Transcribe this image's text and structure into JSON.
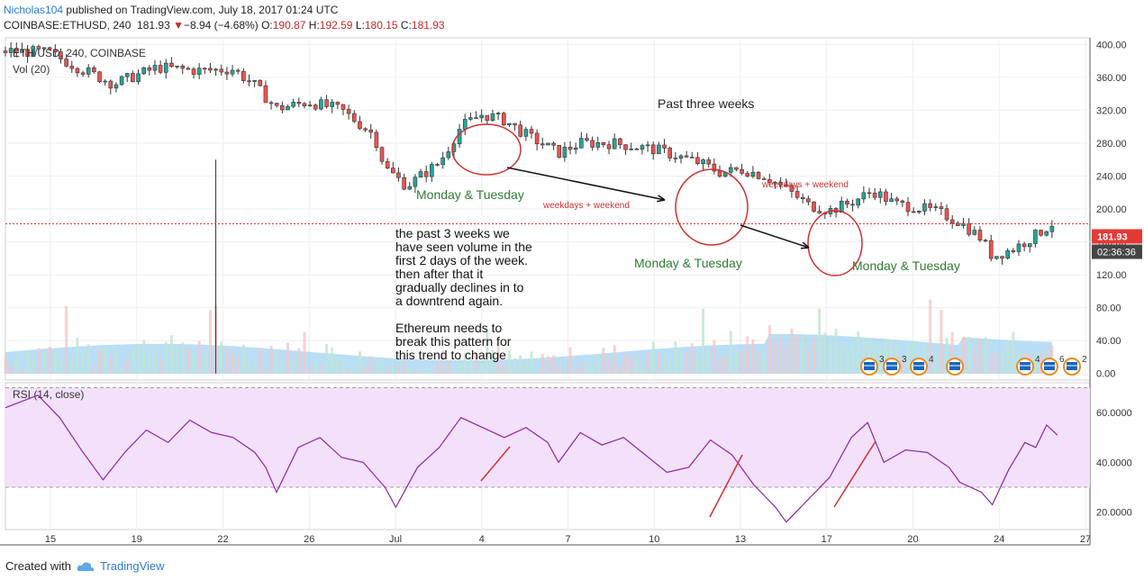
{
  "header": {
    "user": "Nicholas104",
    "published": "published on TradingView.com, July 18, 2017 01:24 UTC",
    "symbol": "COINBASE:ETHUSD, 240",
    "price": "181.93",
    "change_arrow": "▼",
    "change": "−8.94 (−4.68%)",
    "o_label": "O:",
    "o_val": "190.87",
    "h_label": "H:",
    "h_val": "192.59",
    "l_label": "L:",
    "l_val": "180.15",
    "c_label": "C:",
    "c_val": "181.93"
  },
  "footer": {
    "created": "Created with",
    "brand": "TradingView"
  },
  "colors": {
    "up": "#26a69a",
    "down": "#ef5350",
    "rsi": "#8e24aa",
    "annot": "#d32f2f",
    "label_green": "#2e7d32",
    "price_tag": "#e53935",
    "time_tag": "#444444"
  },
  "chart_data": [
    {
      "type": "candlestick",
      "title": "ETH/USD, 240, COINBASE",
      "ylim": [
        -8,
        408
      ],
      "y_ticks": [
        "400.00",
        "360.00",
        "320.00",
        "280.00",
        "240.00",
        "200.00",
        "160.00",
        "120.00",
        "80.00",
        "40.00",
        "0.00"
      ],
      "x_ticks": [
        "15",
        "19",
        "22",
        "26",
        "Jul",
        "4",
        "7",
        "10",
        "13",
        "17",
        "20",
        "24",
        "27"
      ],
      "last_price": "181.93",
      "countdown": "02:36:36",
      "volume_label": "Vol (20)",
      "event_counts": [
        "3",
        "3",
        "4",
        "4",
        "6",
        "2"
      ],
      "trend": [
        [
          0,
          392
        ],
        [
          4,
          390
        ],
        [
          7,
          370
        ],
        [
          10,
          352
        ],
        [
          14,
          372
        ],
        [
          18,
          368
        ],
        [
          21,
          370
        ],
        [
          23,
          350
        ],
        [
          25,
          322
        ],
        [
          28,
          330
        ],
        [
          31,
          320
        ],
        [
          34,
          290
        ],
        [
          35,
          250
        ],
        [
          37,
          228
        ],
        [
          40,
          256
        ],
        [
          42,
          300
        ],
        [
          44,
          315
        ],
        [
          46,
          308
        ],
        [
          48,
          290
        ],
        [
          51,
          268
        ],
        [
          53,
          280
        ],
        [
          56,
          280
        ],
        [
          58,
          276
        ],
        [
          60,
          272
        ],
        [
          62,
          264
        ],
        [
          64,
          256
        ],
        [
          66,
          244
        ],
        [
          68,
          248
        ],
        [
          70,
          240
        ],
        [
          72,
          224
        ],
        [
          74,
          205
        ],
        [
          76,
          198
        ],
        [
          78,
          208
        ],
        [
          80,
          222
        ],
        [
          82,
          206
        ],
        [
          84,
          202
        ],
        [
          86,
          196
        ],
        [
          88,
          184
        ],
        [
          90,
          164
        ],
        [
          91,
          142
        ],
        [
          93,
          152
        ],
        [
          95,
          168
        ],
        [
          96.5,
          182
        ]
      ],
      "annotations": {
        "past": "Past three weeks",
        "mt1": "Monday & Tuesday",
        "mt2": "Monday & Tuesday",
        "mt3": "Monday & Tuesday",
        "wk1": "weekdays + weekend",
        "wk2": "weekdays + weekend",
        "note": [
          "the past 3 weeks we",
          "have seen volume in the",
          "first 2 days of the week.",
          "then after that it",
          "gradually declines in to",
          "a downtrend again.",
          "",
          "Ethereum needs to",
          "break this pattern for",
          "this trend to change"
        ]
      }
    },
    {
      "type": "line",
      "title": "RSI (14, close)",
      "ylim": [
        13,
        72
      ],
      "y_ticks": [
        "60.0000",
        "40.0000",
        "20.0000"
      ],
      "band": [
        30,
        70
      ],
      "series": [
        {
          "values": [
            [
              0,
              62
            ],
            [
              3,
              67
            ],
            [
              5,
              58
            ],
            [
              7,
              45
            ],
            [
              9,
              33
            ],
            [
              11,
              44
            ],
            [
              13,
              53
            ],
            [
              15,
              48
            ],
            [
              17,
              57
            ],
            [
              19,
              52
            ],
            [
              21,
              50
            ],
            [
              23,
              44
            ],
            [
              24,
              38
            ],
            [
              25,
              28
            ],
            [
              27,
              46
            ],
            [
              29,
              50
            ],
            [
              31,
              42
            ],
            [
              33,
              40
            ],
            [
              35,
              30
            ],
            [
              36,
              22
            ],
            [
              38,
              38
            ],
            [
              40,
              46
            ],
            [
              42,
              58
            ],
            [
              44,
              54
            ],
            [
              46,
              50
            ],
            [
              48,
              54
            ],
            [
              50,
              48
            ],
            [
              51,
              40
            ],
            [
              53,
              52
            ],
            [
              55,
              47
            ],
            [
              57,
              50
            ],
            [
              59,
              43
            ],
            [
              61,
              36
            ],
            [
              63,
              38
            ],
            [
              65,
              49
            ],
            [
              67,
              43
            ],
            [
              69,
              31
            ],
            [
              71,
              22
            ],
            [
              72,
              16
            ],
            [
              74,
              25
            ],
            [
              76,
              34
            ],
            [
              78,
              50
            ],
            [
              79.5,
              56
            ],
            [
              81,
              40
            ],
            [
              83,
              45
            ],
            [
              85,
              44
            ],
            [
              87,
              38
            ],
            [
              88,
              32
            ],
            [
              90,
              28
            ],
            [
              91,
              23
            ],
            [
              92.5,
              37
            ],
            [
              94,
              48
            ],
            [
              95,
              46
            ],
            [
              96,
              55
            ],
            [
              97,
              51
            ]
          ]
        }
      ]
    }
  ]
}
